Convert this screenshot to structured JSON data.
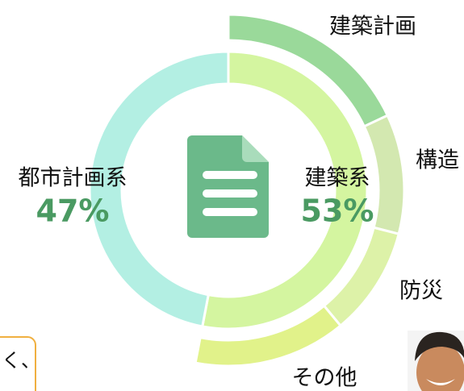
{
  "chart_data": {
    "type": "donut",
    "inner": {
      "categories": [
        "建築系",
        "都市計画系"
      ],
      "values": [
        53,
        47
      ],
      "value_labels": [
        "53%",
        "47%"
      ],
      "colors": [
        "#d4f5a0",
        "#b3efe3"
      ]
    },
    "outer": {
      "categories": [
        "建築計画",
        "構造",
        "防災",
        "その他"
      ],
      "values": [
        18,
        11,
        10,
        14
      ],
      "colors": [
        "#9ad99a",
        "#d3e8b0",
        "#ddf2a8",
        "#e1f28a"
      ]
    }
  },
  "caption": "く、"
}
